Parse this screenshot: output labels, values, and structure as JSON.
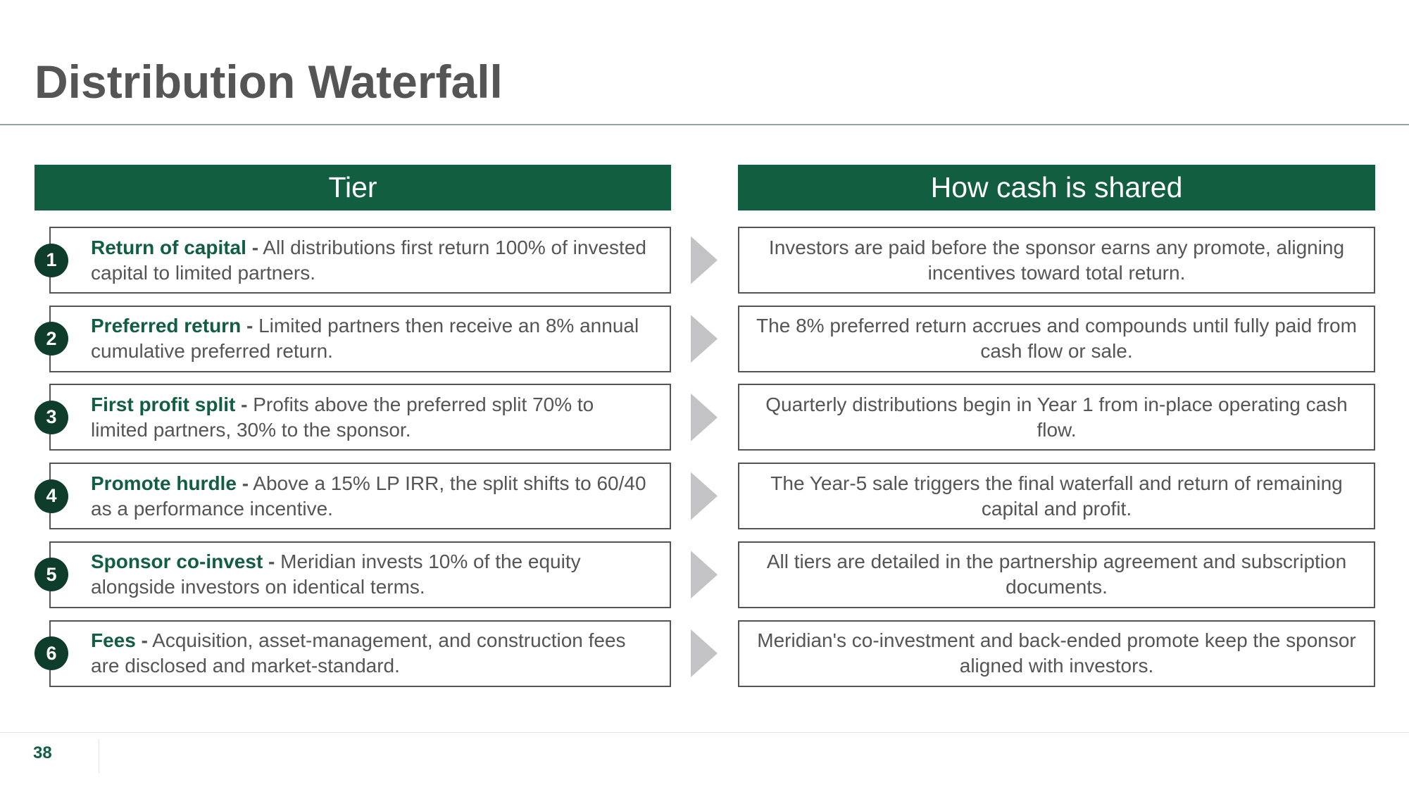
{
  "header": {
    "title": "Distribution Waterfall"
  },
  "columns": {
    "left": "Tier",
    "right": "How cash is shared"
  },
  "rows": [
    {
      "number": "1",
      "label": "Return of capital",
      "dash": "-",
      "text": "All distributions first return 100% of invested capital to limited partners.",
      "detail": "Investors are paid before the sponsor earns any promote, aligning incentives toward total return."
    },
    {
      "number": "2",
      "label": "Preferred return",
      "dash": "-",
      "text": "Limited partners then receive an 8% annual cumulative preferred return.",
      "detail": "The 8% preferred return accrues and compounds until fully paid from cash flow or sale."
    },
    {
      "number": "3",
      "label": "First profit split",
      "dash": "-",
      "text": "Profits above the preferred split 70% to limited partners, 30% to the sponsor.",
      "detail": "Quarterly distributions begin in Year 1 from in-place operating cash flow."
    },
    {
      "number": "4",
      "label": "Promote hurdle",
      "dash": "-",
      "text": "Above a 15% LP IRR, the split shifts to 60/40 as a performance incentive.",
      "detail": "The Year-5 sale triggers the final waterfall and return of remaining capital and profit."
    },
    {
      "number": "5",
      "label": "Sponsor co-invest",
      "dash": "-",
      "text": "Meridian invests 10% of the equity alongside investors on identical terms.",
      "detail": "All tiers are detailed in the partnership agreement and subscription documents."
    },
    {
      "number": "6",
      "label": "Fees",
      "dash": "-",
      "text": "Acquisition, asset-management, and construction fees are disclosed and market-standard.",
      "detail": "Meridian's co-investment and back-ended promote keep the sponsor aligned with investors."
    }
  ],
  "footer": {
    "page": "38"
  }
}
